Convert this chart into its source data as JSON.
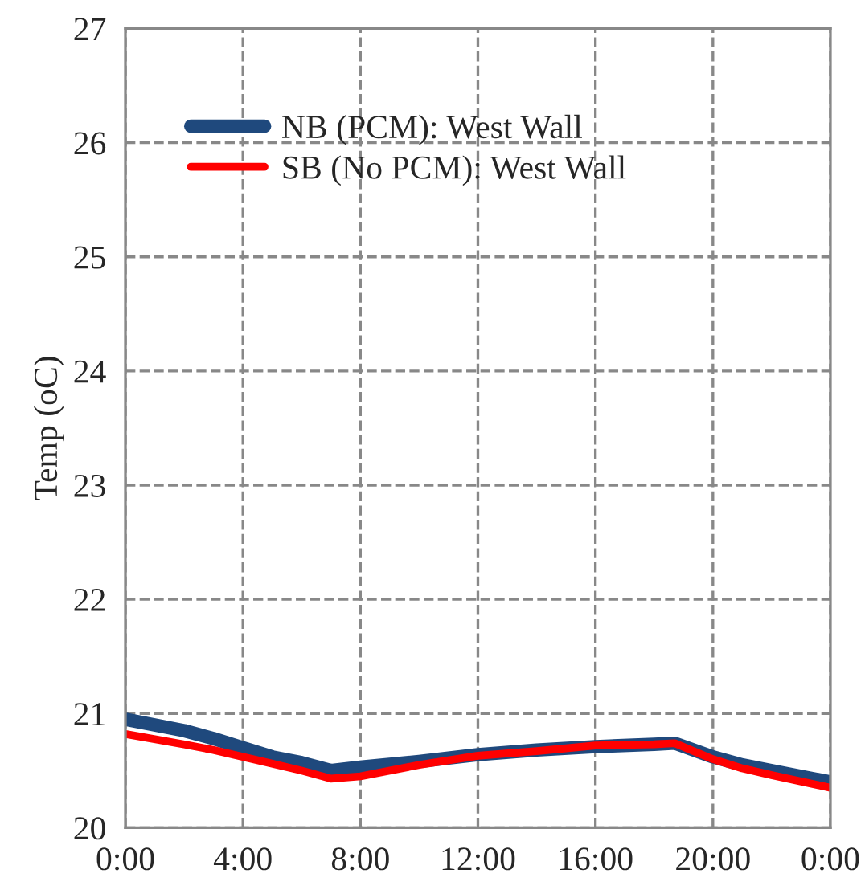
{
  "chart_data": {
    "type": "line",
    "ylabel": "Temp (oC)",
    "x": [
      0,
      2,
      3,
      4,
      5,
      6,
      7,
      8,
      10,
      12,
      14,
      16,
      18,
      18.7,
      20,
      21,
      22,
      24
    ],
    "series": [
      {
        "name": "NB (PCM): West Wall",
        "color": "#1f497d",
        "values": [
          20.95,
          20.85,
          20.78,
          20.7,
          20.62,
          20.57,
          20.5,
          20.53,
          20.58,
          20.64,
          20.68,
          20.71,
          20.73,
          20.74,
          20.62,
          20.55,
          20.5,
          20.4
        ]
      },
      {
        "name": "SB (No PCM): West Wall",
        "color": "#ff0000",
        "values": [
          20.82,
          20.73,
          20.68,
          20.62,
          20.56,
          20.5,
          20.43,
          20.45,
          20.55,
          20.63,
          20.67,
          20.72,
          20.73,
          20.74,
          20.6,
          20.52,
          20.46,
          20.35
        ]
      }
    ],
    "xlim": [
      0,
      24
    ],
    "xticks": [
      {
        "value": 0,
        "label": "0:00"
      },
      {
        "value": 4,
        "label": "4:00"
      },
      {
        "value": 8,
        "label": "8:00"
      },
      {
        "value": 12,
        "label": "12:00"
      },
      {
        "value": 16,
        "label": "16:00"
      },
      {
        "value": 20,
        "label": "20:00"
      },
      {
        "value": 24,
        "label": "0:00"
      }
    ],
    "ylim": [
      20,
      27
    ],
    "yticks": [
      20,
      21,
      22,
      23,
      24,
      25,
      26,
      27
    ],
    "grid": true,
    "legend": "top left",
    "marker": "none",
    "line_style": "solid"
  }
}
